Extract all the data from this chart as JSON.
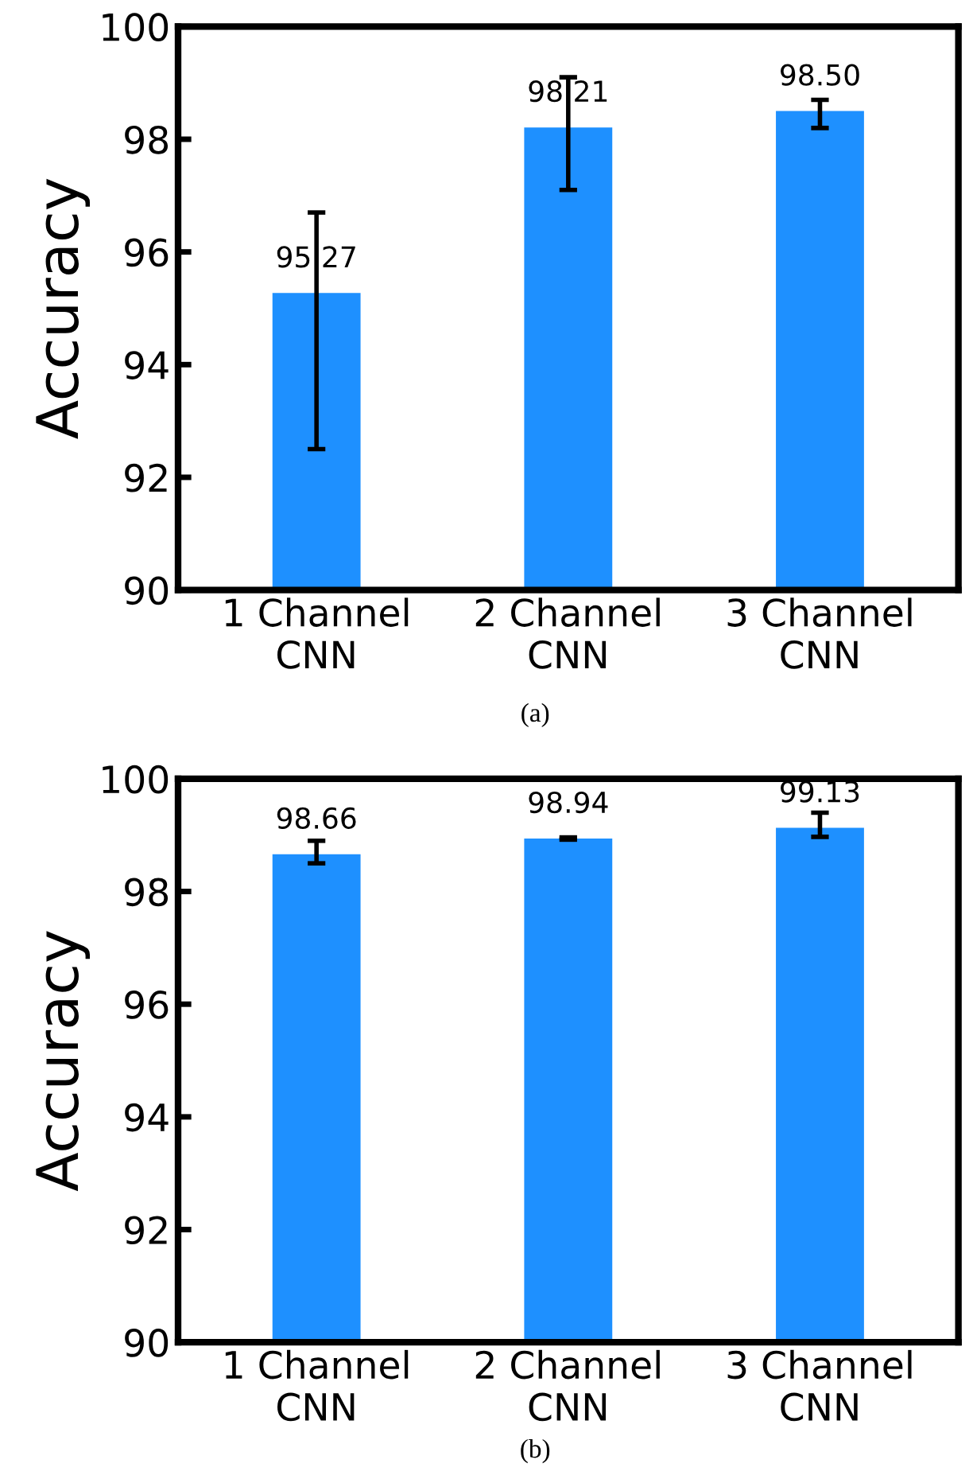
{
  "chart_data": [
    {
      "type": "bar",
      "ylabel": "Accuracy",
      "categories": [
        "1 Channel\nCNN",
        "2 Channel\nCNN",
        "3 Channel\nCNN"
      ],
      "values": [
        95.27,
        98.21,
        98.5
      ],
      "value_labels": [
        "95.27",
        "98.21",
        "98.50"
      ],
      "errors": [
        [
          92.5,
          96.7
        ],
        [
          97.1,
          99.1
        ],
        [
          98.2,
          98.7
        ]
      ],
      "color": "#1e90ff",
      "ylim": [
        90,
        100
      ],
      "yticks": [
        90,
        92,
        94,
        96,
        98,
        100
      ],
      "grid": false,
      "annotations": [
        "(a)"
      ]
    },
    {
      "type": "bar",
      "ylabel": "Accuracy",
      "categories": [
        "1 Channel\nCNN",
        "2 Channel\nCNN",
        "3 Channel\nCNN"
      ],
      "values": [
        98.66,
        98.94,
        99.13
      ],
      "value_labels": [
        "98.66",
        "98.94",
        "99.13"
      ],
      "errors": [
        [
          98.5,
          98.9
        ],
        [
          98.92,
          98.96
        ],
        [
          98.97,
          99.4
        ]
      ],
      "color": "#1e90ff",
      "ylim": [
        90,
        100
      ],
      "yticks": [
        90,
        92,
        94,
        96,
        98,
        100
      ],
      "grid": false,
      "annotations": [
        "(b)"
      ]
    }
  ]
}
